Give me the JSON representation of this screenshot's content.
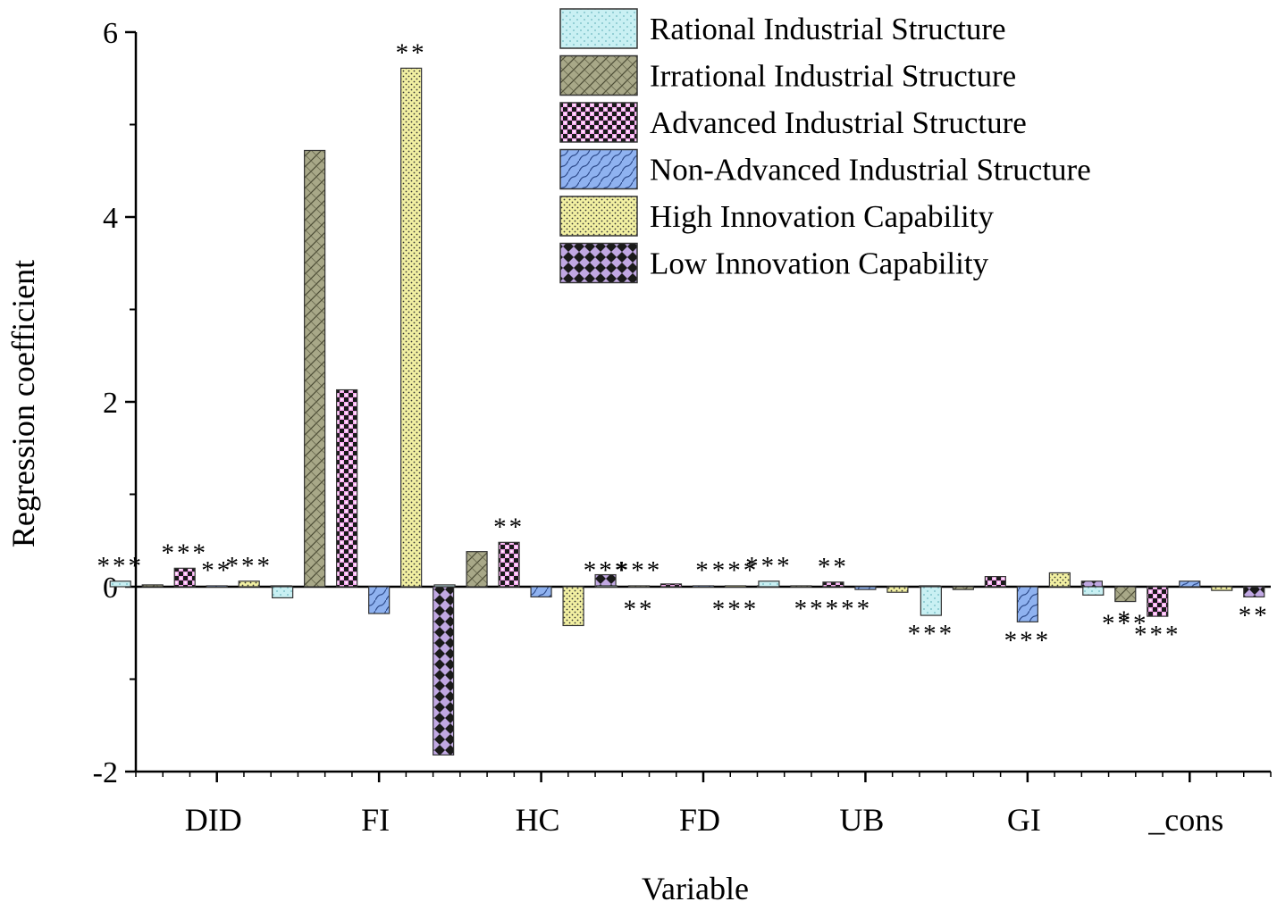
{
  "chart_data": {
    "type": "bar",
    "xlabel": "Variable",
    "ylabel": "Regression coefficient",
    "ylim": [
      -2,
      6
    ],
    "yticks": [
      -2,
      0,
      2,
      4,
      6
    ],
    "yticks_labels": [
      "-2",
      "0",
      "2",
      "4",
      "6"
    ],
    "categories": [
      "DID",
      "FI",
      "HC",
      "FD",
      "UB",
      "GI",
      "_cons"
    ],
    "series": [
      {
        "name": "Rational Industrial Structure",
        "color": "#c9f0f3",
        "values": [
          0.06,
          -0.12,
          0.02,
          0.01,
          0.06,
          -0.31,
          -0.09
        ]
      },
      {
        "name": "Irrational Industrial Structure",
        "color": "#a8a888",
        "values": [
          0.02,
          4.72,
          0.38,
          0.01,
          0.01,
          -0.03,
          -0.16
        ]
      },
      {
        "name": "Advanced Industrial Structure",
        "color": "#f6a8ef",
        "values": [
          0.2,
          2.13,
          0.48,
          0.03,
          0.05,
          0.11,
          -0.32
        ]
      },
      {
        "name": "Non-Advanced Industrial Structure",
        "color": "#8fb2f0",
        "values": [
          0.01,
          -0.29,
          -0.11,
          0.01,
          -0.03,
          -0.38,
          0.06
        ]
      },
      {
        "name": "High Innovation Capability",
        "color": "#f2f0a2",
        "values": [
          0.06,
          5.61,
          -0.42,
          0.01,
          -0.06,
          0.15,
          -0.04
        ]
      },
      {
        "name": "Low Innovation Capability",
        "color": "#c1a8e3",
        "values": [
          0.01,
          -1.82,
          0.13,
          0.01,
          0.01,
          0.06,
          -0.11
        ]
      }
    ],
    "annotations": [
      {
        "category": "DID",
        "series": 0,
        "text": "***"
      },
      {
        "category": "DID",
        "series": 2,
        "text": "***"
      },
      {
        "category": "DID",
        "series": 3,
        "text": "**"
      },
      {
        "category": "DID",
        "series": 4,
        "text": "***"
      },
      {
        "category": "FI",
        "series": 4,
        "text": "**"
      },
      {
        "category": "HC",
        "series": 2,
        "text": "**"
      },
      {
        "category": "FD",
        "series": 0,
        "text": "***"
      },
      {
        "category": "FD",
        "series": 1,
        "text": "***"
      },
      {
        "category": "FD",
        "series": 1,
        "text": "**"
      },
      {
        "category": "FD",
        "series": 3,
        "text": "*"
      },
      {
        "category": "FD",
        "series": 4,
        "text": "***"
      },
      {
        "category": "FD",
        "series": 4,
        "text": "***"
      },
      {
        "category": "UB",
        "series": 0,
        "text": "***"
      },
      {
        "category": "UB",
        "series": 2,
        "text": "**"
      },
      {
        "category": "UB",
        "series": 2,
        "text": "*****"
      },
      {
        "category": "GI",
        "series": 0,
        "text": "***"
      },
      {
        "category": "GI",
        "series": 3,
        "text": "***"
      },
      {
        "category": "_cons",
        "series": 1,
        "text": "*"
      },
      {
        "category": "_cons",
        "series": 1,
        "text": "***"
      },
      {
        "category": "_cons",
        "series": 2,
        "text": "***"
      },
      {
        "category": "_cons",
        "series": 5,
        "text": "**"
      }
    ]
  }
}
